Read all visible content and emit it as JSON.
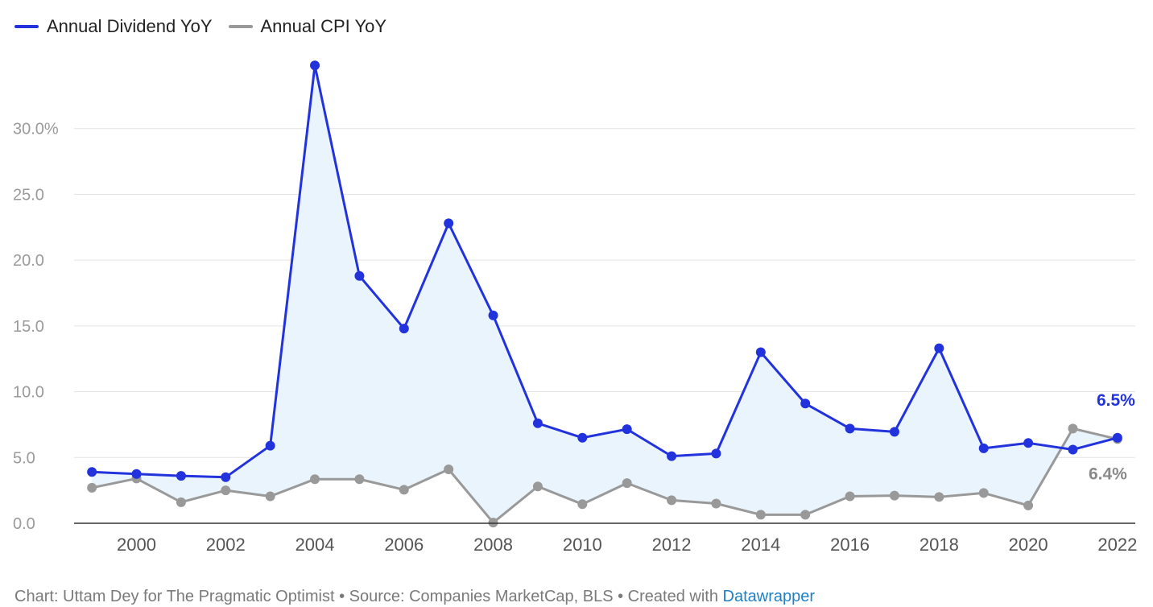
{
  "chart_data": {
    "type": "line",
    "title": "",
    "xlabel": "",
    "ylabel": "",
    "x": [
      1999,
      2000,
      2001,
      2002,
      2003,
      2004,
      2005,
      2006,
      2007,
      2008,
      2009,
      2010,
      2011,
      2012,
      2013,
      2014,
      2015,
      2016,
      2017,
      2018,
      2019,
      2020,
      2021,
      2022
    ],
    "xlim": [
      1998.6,
      2022.4
    ],
    "ylim": [
      0,
      35
    ],
    "x_ticks": [
      "2000",
      "2002",
      "2004",
      "2006",
      "2008",
      "2010",
      "2012",
      "2014",
      "2016",
      "2018",
      "2020",
      "2022"
    ],
    "x_tick_values": [
      2000,
      2002,
      2004,
      2006,
      2008,
      2010,
      2012,
      2014,
      2016,
      2018,
      2020,
      2022
    ],
    "y_ticks": [
      "0.0",
      "5.0",
      "10.0",
      "15.0",
      "20.0",
      "25.0",
      "30.0%"
    ],
    "y_tick_values": [
      0,
      5,
      10,
      15,
      20,
      25,
      30
    ],
    "grid": true,
    "legend_position": "top-left",
    "series": [
      {
        "name": "Annual Dividend YoY",
        "color": "#2233dd",
        "values": [
          3.9,
          3.75,
          3.6,
          3.5,
          5.9,
          34.8,
          18.8,
          14.8,
          22.8,
          15.8,
          7.6,
          6.5,
          7.15,
          5.1,
          5.3,
          13.0,
          9.1,
          7.2,
          6.95,
          13.3,
          5.7,
          6.1,
          5.6,
          6.5
        ],
        "end_label": "6.5%"
      },
      {
        "name": "Annual CPI YoY",
        "color": "#999999",
        "values": [
          2.7,
          3.4,
          1.6,
          2.5,
          2.05,
          3.35,
          3.35,
          2.55,
          4.1,
          0.05,
          2.8,
          1.45,
          3.05,
          1.75,
          1.5,
          0.65,
          0.65,
          2.05,
          2.1,
          2.0,
          2.3,
          1.35,
          7.2,
          6.4
        ],
        "end_label": "6.4%"
      }
    ],
    "fill_between_color": "#eaf4fc"
  },
  "footer": {
    "text": "Chart: Uttam Dey for The Pragmatic Optimist • Source: Companies MarketCap, BLS • Created with ",
    "link": "Datawrapper",
    "link_color": "#1d81c4"
  }
}
